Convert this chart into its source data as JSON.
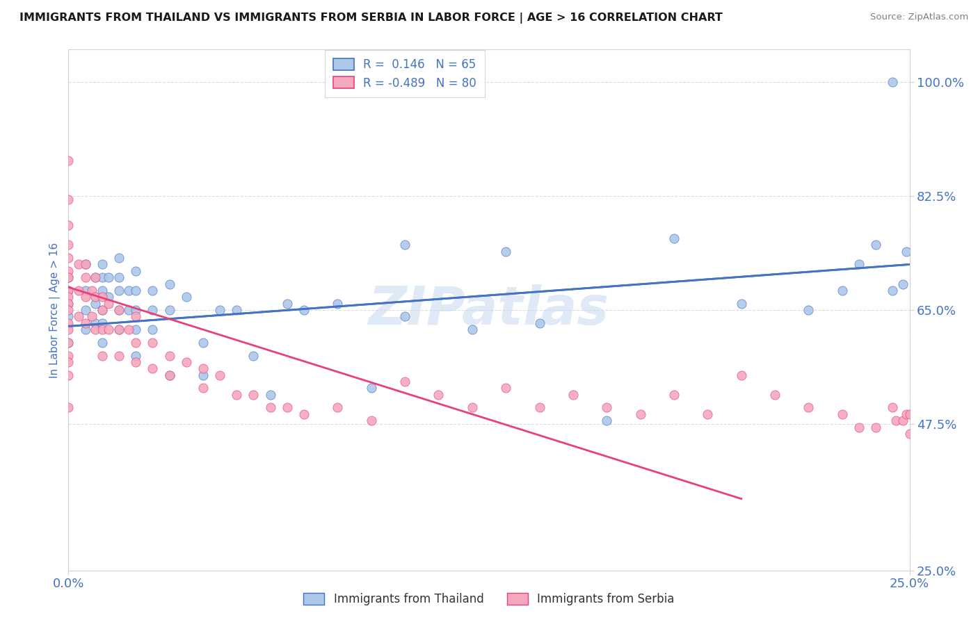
{
  "title": "IMMIGRANTS FROM THAILAND VS IMMIGRANTS FROM SERBIA IN LABOR FORCE | AGE > 16 CORRELATION CHART",
  "source": "Source: ZipAtlas.com",
  "ylabel": "In Labor Force | Age > 16",
  "xlim": [
    0.0,
    0.25
  ],
  "ylim": [
    0.25,
    1.05
  ],
  "ytick_labels": [
    "25.0%",
    "47.5%",
    "65.0%",
    "82.5%",
    "100.0%"
  ],
  "ytick_vals": [
    0.25,
    0.475,
    0.65,
    0.825,
    1.0
  ],
  "xtick_labels": [
    "0.0%",
    "25.0%"
  ],
  "xtick_vals": [
    0.0,
    0.25
  ],
  "color_thailand": "#adc8e8",
  "color_serbia": "#f4a8be",
  "color_line_thailand": "#4472c4",
  "color_line_serbia": "#e8417a",
  "watermark": "ZIPatlas",
  "title_color": "#1a1a1a",
  "axis_label_color": "#4472c4",
  "tick_label_color": "#4472c4",
  "legend_line1": "R =  0.146   N = 65",
  "legend_line2": "R = -0.489   N = 80",
  "thailand_line_x0": 0.0,
  "thailand_line_y0": 0.625,
  "thailand_line_x1": 0.25,
  "thailand_line_y1": 0.72,
  "serbia_line_x0": 0.0,
  "serbia_line_y0": 0.685,
  "serbia_line_x1": 0.2,
  "serbia_line_y1": 0.36,
  "thailand_scatter_x": [
    0.0,
    0.0,
    0.0,
    0.0,
    0.0,
    0.005,
    0.005,
    0.005,
    0.005,
    0.008,
    0.008,
    0.008,
    0.01,
    0.01,
    0.01,
    0.01,
    0.01,
    0.01,
    0.012,
    0.012,
    0.015,
    0.015,
    0.015,
    0.015,
    0.015,
    0.018,
    0.018,
    0.02,
    0.02,
    0.02,
    0.02,
    0.02,
    0.025,
    0.025,
    0.025,
    0.03,
    0.03,
    0.03,
    0.035,
    0.04,
    0.04,
    0.045,
    0.05,
    0.055,
    0.06,
    0.065,
    0.07,
    0.08,
    0.09,
    0.1,
    0.1,
    0.12,
    0.13,
    0.14,
    0.16,
    0.18,
    0.2,
    0.22,
    0.23,
    0.235,
    0.24,
    0.245,
    0.245,
    0.248,
    0.249
  ],
  "thailand_scatter_y": [
    0.7,
    0.68,
    0.66,
    0.64,
    0.6,
    0.72,
    0.68,
    0.65,
    0.62,
    0.7,
    0.66,
    0.63,
    0.72,
    0.7,
    0.68,
    0.65,
    0.63,
    0.6,
    0.7,
    0.67,
    0.73,
    0.7,
    0.68,
    0.65,
    0.62,
    0.68,
    0.65,
    0.71,
    0.68,
    0.65,
    0.62,
    0.58,
    0.68,
    0.65,
    0.62,
    0.69,
    0.65,
    0.55,
    0.67,
    0.6,
    0.55,
    0.65,
    0.65,
    0.58,
    0.52,
    0.66,
    0.65,
    0.66,
    0.53,
    0.75,
    0.64,
    0.62,
    0.74,
    0.63,
    0.48,
    0.76,
    0.66,
    0.65,
    0.68,
    0.72,
    0.75,
    1.0,
    0.68,
    0.69,
    0.74
  ],
  "serbia_scatter_x": [
    0.0,
    0.0,
    0.0,
    0.0,
    0.0,
    0.0,
    0.0,
    0.0,
    0.0,
    0.0,
    0.0,
    0.0,
    0.0,
    0.0,
    0.0,
    0.0,
    0.0,
    0.0,
    0.003,
    0.003,
    0.003,
    0.005,
    0.005,
    0.005,
    0.005,
    0.007,
    0.007,
    0.008,
    0.008,
    0.008,
    0.01,
    0.01,
    0.01,
    0.01,
    0.012,
    0.012,
    0.015,
    0.015,
    0.015,
    0.018,
    0.02,
    0.02,
    0.02,
    0.025,
    0.025,
    0.03,
    0.03,
    0.035,
    0.04,
    0.04,
    0.045,
    0.05,
    0.055,
    0.06,
    0.065,
    0.07,
    0.08,
    0.09,
    0.1,
    0.11,
    0.12,
    0.13,
    0.14,
    0.15,
    0.16,
    0.17,
    0.18,
    0.19,
    0.2,
    0.21,
    0.22,
    0.23,
    0.235,
    0.24,
    0.245,
    0.246,
    0.248,
    0.249,
    0.25,
    0.25
  ],
  "serbia_scatter_y": [
    0.88,
    0.82,
    0.78,
    0.75,
    0.73,
    0.71,
    0.7,
    0.68,
    0.67,
    0.66,
    0.65,
    0.63,
    0.62,
    0.6,
    0.58,
    0.57,
    0.55,
    0.5,
    0.72,
    0.68,
    0.64,
    0.72,
    0.7,
    0.67,
    0.63,
    0.68,
    0.64,
    0.7,
    0.67,
    0.62,
    0.67,
    0.65,
    0.62,
    0.58,
    0.66,
    0.62,
    0.65,
    0.62,
    0.58,
    0.62,
    0.64,
    0.6,
    0.57,
    0.6,
    0.56,
    0.58,
    0.55,
    0.57,
    0.56,
    0.53,
    0.55,
    0.52,
    0.52,
    0.5,
    0.5,
    0.49,
    0.5,
    0.48,
    0.54,
    0.52,
    0.5,
    0.53,
    0.5,
    0.52,
    0.5,
    0.49,
    0.52,
    0.49,
    0.55,
    0.52,
    0.5,
    0.49,
    0.47,
    0.47,
    0.5,
    0.48,
    0.48,
    0.49,
    0.46,
    0.49
  ]
}
